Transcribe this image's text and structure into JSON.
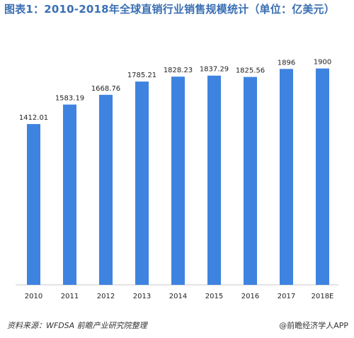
{
  "title": "图表1：2010-2018年全球直销行业销售规模统计（单位：亿美元）",
  "source": "资料来源：WFDSA 前瞻产业研究院整理",
  "credit": "@前瞻经济学人APP",
  "colors": {
    "bar": "#3f83e0",
    "title": "#3a6fb3"
  },
  "chart_data": {
    "type": "bar",
    "title": "图表1：2010-2018年全球直销行业销售规模统计（单位：亿美元）",
    "categories": [
      "2010",
      "2011",
      "2012",
      "2013",
      "2014",
      "2015",
      "2016",
      "2017",
      "2018E"
    ],
    "values": [
      1412.01,
      1583.19,
      1668.76,
      1785.21,
      1828.23,
      1837.29,
      1825.56,
      1896,
      1900
    ],
    "value_labels": [
      "1412.01",
      "1583.19",
      "1668.76",
      "1785.21",
      "1828.23",
      "1837.29",
      "1825.56",
      "1896",
      "1900"
    ],
    "ylim": [
      0,
      1960
    ],
    "grid": false,
    "legend": "none"
  }
}
